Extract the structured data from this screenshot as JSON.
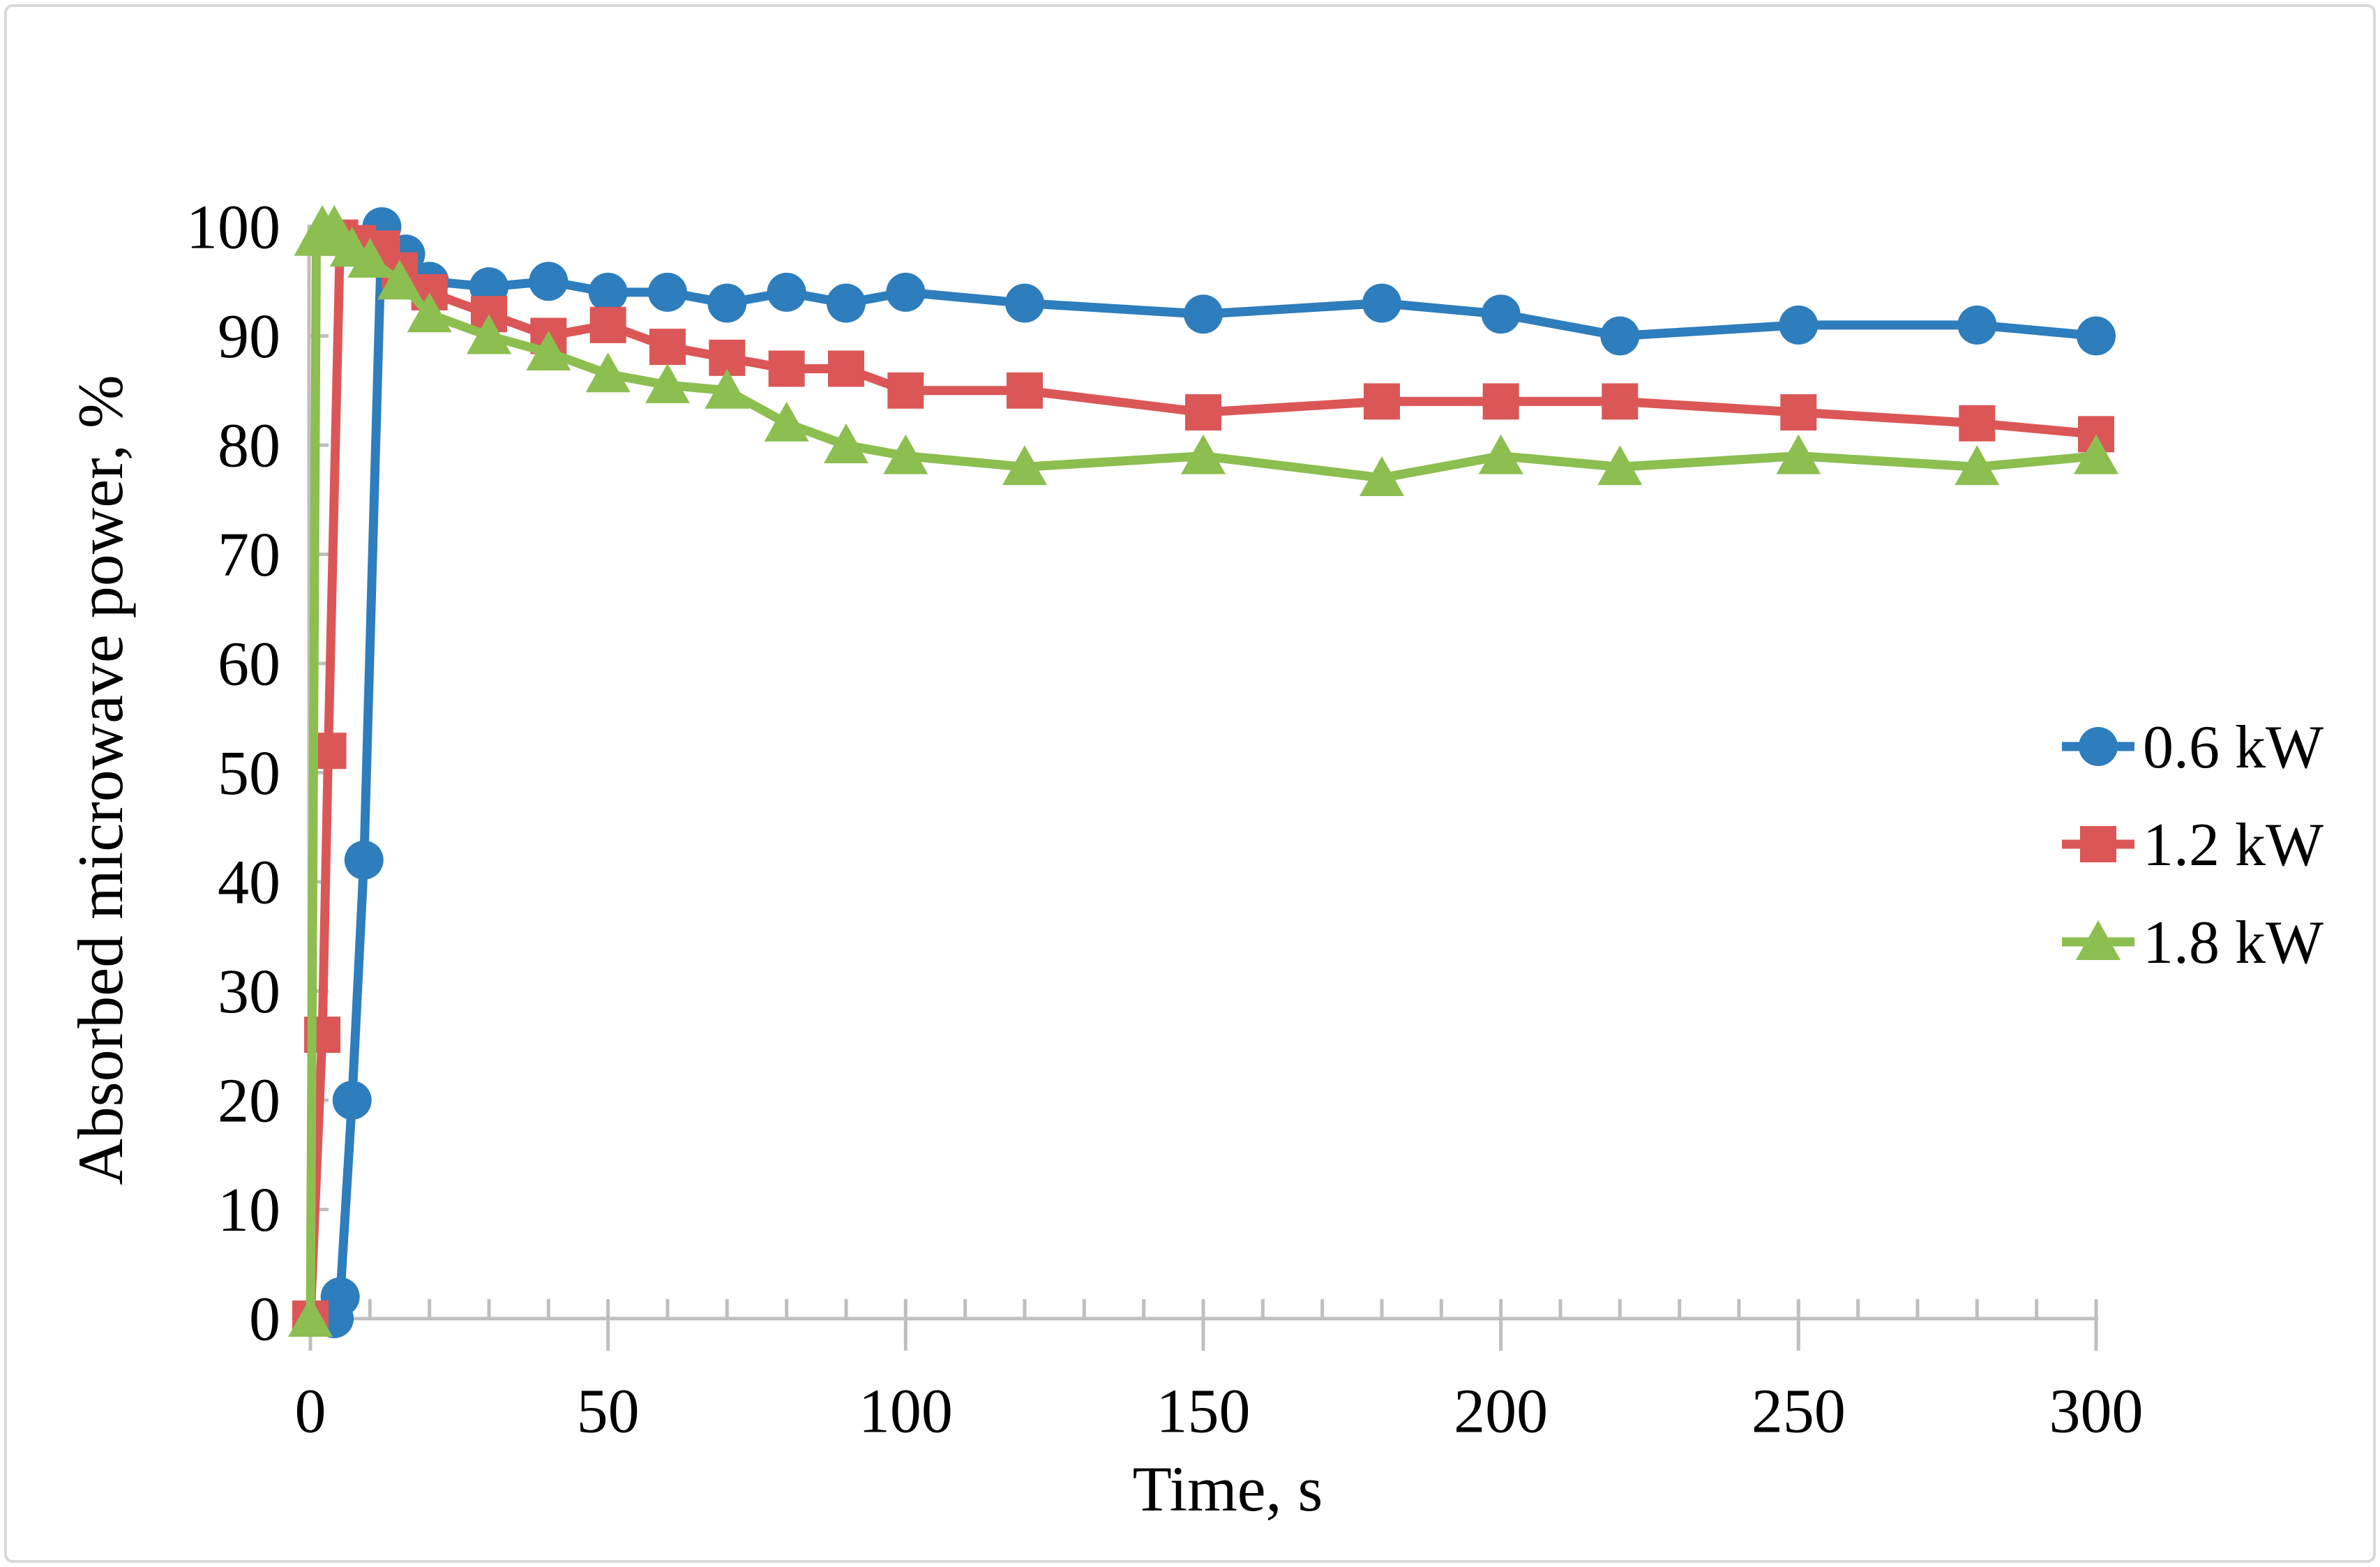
{
  "figure": {
    "background_color": "#FFFFFF",
    "border_color": "#D9D9D9",
    "axis_color": "#BFBFBF",
    "text_color": "#000000"
  },
  "chart_data": {
    "type": "line",
    "title": "",
    "xlabel": "Time, s",
    "ylabel": "Absorbed microwave power, %",
    "xlim": [
      0,
      300
    ],
    "ylim": [
      0,
      100
    ],
    "x_major_ticks": [
      0,
      50,
      100,
      150,
      200,
      250,
      300
    ],
    "x_minor_tick_step": 10,
    "y_ticks": [
      0,
      10,
      20,
      30,
      40,
      50,
      60,
      70,
      80,
      90,
      100
    ],
    "grid": false,
    "legend_position": "middle-right",
    "series": [
      {
        "name": "0.6 kW",
        "color": "#2E7DBC",
        "marker": "circle",
        "points": [
          [
            4,
            0
          ],
          [
            5,
            2
          ],
          [
            7,
            20
          ],
          [
            9,
            42
          ],
          [
            12,
            100
          ],
          [
            16,
            97.5
          ],
          [
            20,
            95
          ],
          [
            30,
            94.5
          ],
          [
            40,
            95
          ],
          [
            50,
            94
          ],
          [
            60,
            94
          ],
          [
            70,
            93
          ],
          [
            80,
            94
          ],
          [
            90,
            93
          ],
          [
            100,
            94
          ],
          [
            120,
            93
          ],
          [
            150,
            92
          ],
          [
            180,
            93
          ],
          [
            200,
            92
          ],
          [
            220,
            90
          ],
          [
            250,
            91
          ],
          [
            280,
            91
          ],
          [
            300,
            90
          ]
        ]
      },
      {
        "name": "1.2 kW",
        "color": "#DB5757",
        "marker": "square",
        "points": [
          [
            0,
            0
          ],
          [
            2,
            26
          ],
          [
            3,
            52
          ],
          [
            5,
            99
          ],
          [
            8,
            98.5
          ],
          [
            12,
            98
          ],
          [
            15,
            96
          ],
          [
            20,
            94
          ],
          [
            30,
            92
          ],
          [
            40,
            90
          ],
          [
            50,
            91
          ],
          [
            60,
            89
          ],
          [
            70,
            88
          ],
          [
            80,
            87
          ],
          [
            90,
            87
          ],
          [
            100,
            85
          ],
          [
            120,
            85
          ],
          [
            150,
            83
          ],
          [
            180,
            84
          ],
          [
            200,
            84
          ],
          [
            220,
            84
          ],
          [
            250,
            83
          ],
          [
            280,
            82
          ],
          [
            300,
            81
          ]
        ]
      },
      {
        "name": "1.8 kW",
        "color": "#8CBE50",
        "marker": "triangle",
        "points": [
          [
            0,
            0
          ],
          [
            1,
            99
          ],
          [
            2,
            100
          ],
          [
            4,
            100
          ],
          [
            5,
            99
          ],
          [
            7,
            98
          ],
          [
            10,
            97
          ],
          [
            15,
            95
          ],
          [
            20,
            92
          ],
          [
            30,
            90
          ],
          [
            40,
            88.5
          ],
          [
            50,
            86.5
          ],
          [
            60,
            85.5
          ],
          [
            70,
            85
          ],
          [
            80,
            82
          ],
          [
            90,
            80
          ],
          [
            100,
            79
          ],
          [
            120,
            78
          ],
          [
            150,
            79
          ],
          [
            180,
            77
          ],
          [
            200,
            79
          ],
          [
            220,
            78
          ],
          [
            250,
            79
          ],
          [
            280,
            78
          ],
          [
            300,
            79
          ]
        ]
      }
    ]
  }
}
